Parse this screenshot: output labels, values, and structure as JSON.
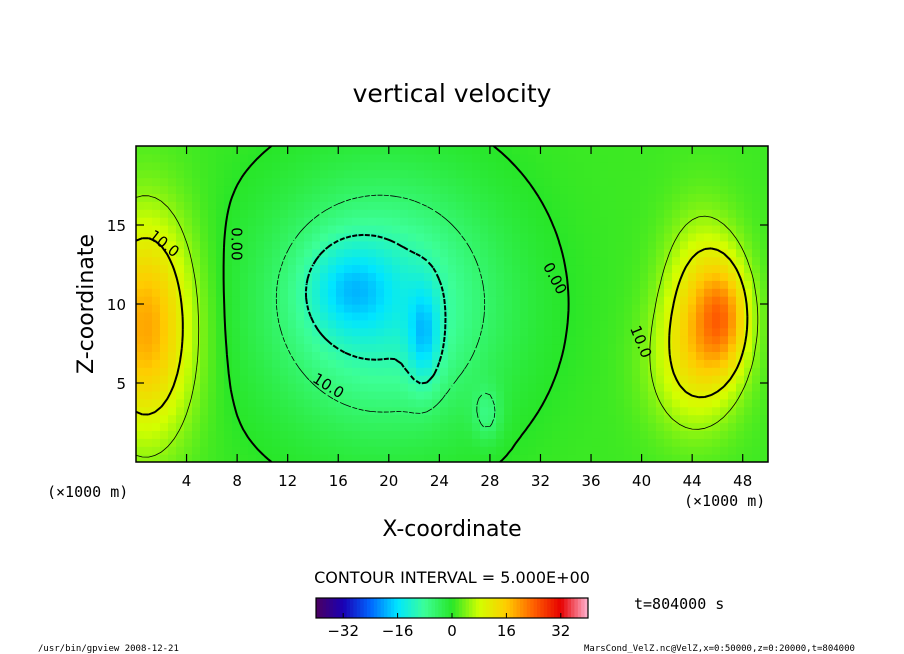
{
  "chart_data": {
    "type": "heatmap",
    "title": "vertical velocity",
    "xlabel": "X-coordinate",
    "ylabel": "Z-coordinate",
    "x_unit_left": "(×1000 m)",
    "x_unit_right": "(×1000 m)",
    "xlim": [
      0,
      50
    ],
    "ylim": [
      0,
      20
    ],
    "x_ticks": [
      4,
      8,
      12,
      16,
      20,
      24,
      28,
      32,
      36,
      40,
      44,
      48
    ],
    "y_ticks": [
      5,
      10,
      15
    ],
    "contour_interval_label": "CONTOUR INTERVAL = 5.000E+00",
    "time_label": "t=804000 s",
    "colorbar": {
      "range": [
        -40,
        40
      ],
      "ticks": [
        -32,
        -16,
        0,
        16,
        32
      ],
      "colors": [
        "#4b0060",
        "#1a00b4",
        "#0066ff",
        "#00e6ff",
        "#3cff96",
        "#28e628",
        "#d2ff00",
        "#ffcc00",
        "#ff6000",
        "#e60000",
        "#ffb4d2"
      ]
    },
    "contour_labels": [
      {
        "text": "10.0",
        "x": 2.2,
        "z": 13.8,
        "angle": 38
      },
      {
        "text": "0.00",
        "x": 7.9,
        "z": 13.8,
        "angle": 90
      },
      {
        "text": "10.0",
        "x": 15.2,
        "z": 4.8,
        "angle": 32
      },
      {
        "text": "0.00",
        "x": 33.1,
        "z": 11.6,
        "angle": 62
      },
      {
        "text": "10.0",
        "x": 39.9,
        "z": 7.6,
        "angle": 68
      }
    ],
    "fields": {
      "background": 1,
      "features": [
        {
          "x": 0.8,
          "z": 8.6,
          "sx": 2.6,
          "sz": 4.8,
          "amp": 18
        },
        {
          "x": 44.8,
          "z": 9.8,
          "sx": 2.1,
          "sz": 3.8,
          "amp": 12
        },
        {
          "x": 46.6,
          "z": 9.2,
          "sx": 1.4,
          "sz": 2.4,
          "amp": 12
        },
        {
          "x": 43.8,
          "z": 6.0,
          "sx": 2.6,
          "sz": 3.0,
          "amp": 6
        },
        {
          "x": 19.5,
          "z": 10.0,
          "sx": 6.5,
          "sz": 5.5,
          "amp": -13
        },
        {
          "x": 17.0,
          "z": 11.0,
          "sx": 2.4,
          "sz": 2.0,
          "amp": -8
        },
        {
          "x": 22.8,
          "z": 8.0,
          "sx": 0.9,
          "sz": 2.2,
          "amp": -9
        },
        {
          "x": 27.8,
          "z": 3.0,
          "sx": 0.8,
          "sz": 1.2,
          "amp": -5
        }
      ]
    }
  },
  "footer": {
    "left": "/usr/bin/gpview   2008-12-21",
    "right": "MarsCond_VelZ.nc@VelZ,x=0:50000,z=0:20000,t=804000"
  }
}
